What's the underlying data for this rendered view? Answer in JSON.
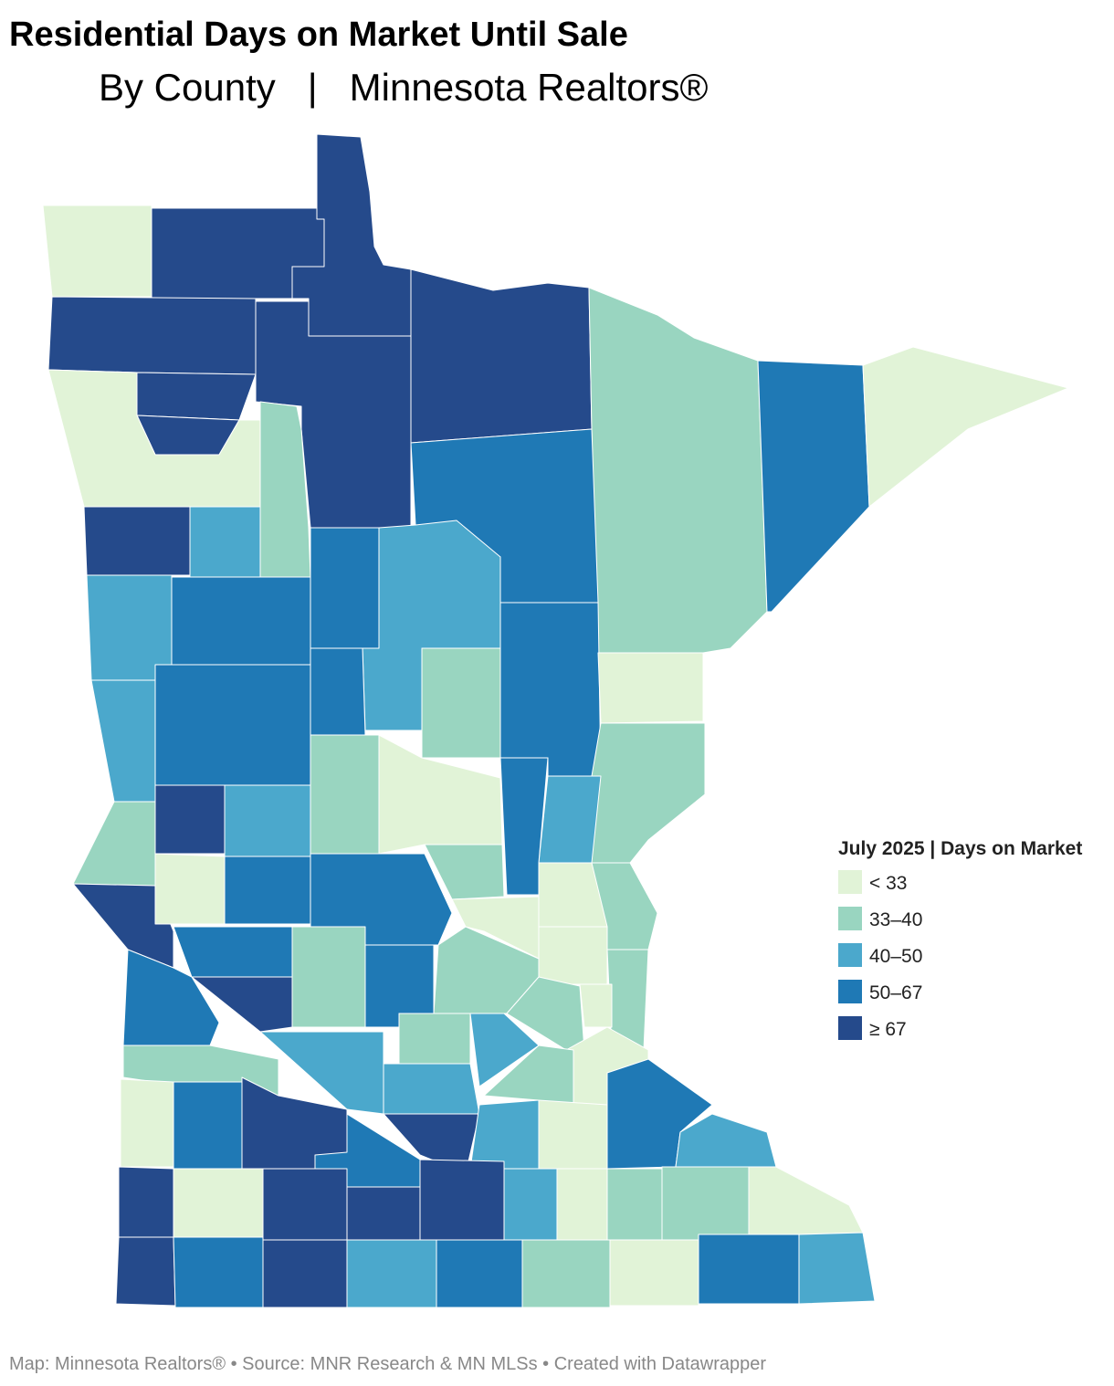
{
  "header": {
    "title": "Residential Days on Market Until Sale",
    "subtitle": "By County   |   Minnesota Realtors®"
  },
  "legend": {
    "title": "July 2025 | Days on Market",
    "items": [
      {
        "label": "< 33",
        "color": "#e1f3d7"
      },
      {
        "label": "33–40",
        "color": "#99d5c0"
      },
      {
        "label": "40–50",
        "color": "#4ba8cc"
      },
      {
        "label": "50–67",
        "color": "#1f79b5"
      },
      {
        "label": "≥ 67",
        "color": "#254a8b"
      }
    ]
  },
  "footer": "Map: Minnesota Realtors® • Source: MNR Research & MN MLSs • Created with Datawrapper"
}
